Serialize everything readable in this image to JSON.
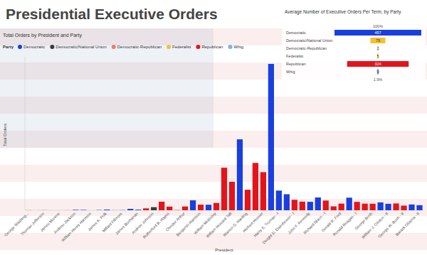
{
  "page": {
    "title": "Presidential Executive Orders"
  },
  "chart_data": [
    {
      "type": "bar",
      "title": "Total Orders by President and Party",
      "x_label": "President",
      "y_label": "Total Orders",
      "legend_title": "Party",
      "legend": "top-left",
      "stacked": true,
      "tick_labels": "x",
      "ylim": [
        0,
        3900
      ],
      "categories": [
        "George Washing...",
        null,
        "Thomas Jefferson",
        null,
        "James Monroe",
        null,
        "Andrew Jackson",
        null,
        "William Henry Harrison",
        null,
        "James K. Polk",
        null,
        "Millard Fillmore",
        null,
        "James Buchanan",
        null,
        "Andrew Johnson",
        null,
        "Rutherford B. Hayes",
        null,
        "Chester Arthur",
        null,
        "Benjamin Harrison",
        null,
        "William McKinley",
        null,
        "William Howard Taft",
        null,
        "Warren G. Harding",
        null,
        "Herbert Hoover",
        null,
        "Harry S. Truman - I",
        null,
        "Dwight D. Eisenhower - I",
        null,
        "John F. Kennedy",
        null,
        "Richard Nixon - I",
        null,
        "Gerald R. Ford",
        null,
        "Ronald Reagan - I",
        null,
        "George Bush",
        null,
        "William J. Clinton - II",
        null,
        "George W. Bush - II",
        null,
        "Barack Obama - II"
      ],
      "series": [
        {
          "name": "Democratic",
          "color": "#1a3fe0",
          "values": [
            null,
            null,
            null,
            null,
            null,
            null,
            12,
            10,
            null,
            null,
            18,
            null,
            null,
            35,
            16,
            null,
            null,
            null,
            null,
            null,
            null,
            253,
            null,
            140,
            null,
            null,
            null,
            1803,
            null,
            null,
            null,
            3721,
            500,
            407,
            null,
            null,
            214,
            325,
            null,
            null,
            null,
            320,
            null,
            null,
            null,
            200,
            164,
            null,
            null,
            147,
            129
          ]
        },
        {
          "name": "Democratic/National Union",
          "color": "#3b3b3b",
          "values": [
            null,
            null,
            null,
            null,
            null,
            null,
            null,
            null,
            null,
            null,
            null,
            null,
            null,
            null,
            null,
            null,
            79,
            null,
            null,
            null,
            null,
            null,
            null,
            null,
            null,
            null,
            null,
            null,
            null,
            null,
            null,
            null,
            null,
            null,
            null,
            null,
            null,
            null,
            null,
            null,
            null,
            null,
            null,
            null,
            null,
            null,
            null,
            null,
            null,
            null,
            null
          ]
        },
        {
          "name": "Democratic-Republican",
          "color": "#f07a72",
          "values": [
            null,
            null,
            4,
            1,
            1,
            3,
            null,
            null,
            null,
            null,
            null,
            null,
            null,
            null,
            null,
            null,
            null,
            null,
            null,
            null,
            null,
            null,
            null,
            null,
            null,
            null,
            null,
            null,
            null,
            null,
            null,
            null,
            null,
            null,
            null,
            null,
            null,
            null,
            null,
            null,
            null,
            null,
            null,
            null,
            null,
            null,
            null,
            null,
            null,
            null,
            null
          ]
        },
        {
          "name": "Federalist",
          "color": "#f2c230",
          "values": [
            8,
            1,
            null,
            null,
            null,
            null,
            null,
            null,
            null,
            null,
            null,
            null,
            null,
            null,
            null,
            null,
            null,
            null,
            null,
            null,
            null,
            null,
            null,
            null,
            null,
            null,
            null,
            null,
            null,
            null,
            null,
            null,
            null,
            null,
            null,
            null,
            null,
            null,
            null,
            null,
            null,
            null,
            null,
            null,
            null,
            null,
            null,
            null,
            null,
            null,
            null
          ]
        },
        {
          "name": "Republican",
          "color": "#e3141c",
          "values": [
            null,
            null,
            null,
            null,
            null,
            null,
            null,
            null,
            null,
            null,
            null,
            null,
            null,
            null,
            null,
            48,
            null,
            217,
            92,
            6,
            96,
            null,
            143,
            null,
            185,
            1081,
            724,
            null,
            522,
            1203,
            968,
            null,
            null,
            null,
            266,
            218,
            null,
            null,
            247,
            99,
            169,
            null,
            213,
            168,
            166,
            null,
            null,
            173,
            118,
            null,
            null
          ]
        },
        {
          "name": "Whig",
          "color": "#7ab3ea",
          "values": [
            null,
            null,
            null,
            null,
            null,
            null,
            null,
            null,
            0,
            17,
            null,
            5,
            12,
            null,
            null,
            null,
            null,
            null,
            null,
            null,
            null,
            null,
            null,
            null,
            null,
            null,
            null,
            null,
            null,
            null,
            null,
            null,
            null,
            null,
            null,
            null,
            null,
            null,
            null,
            null,
            null,
            null,
            null,
            null,
            null,
            null,
            null,
            null,
            null,
            null,
            null
          ]
        }
      ]
    },
    {
      "type": "funnel",
      "title": "Average Number of Executive Orders Per Term, by Party",
      "categories": [
        "Democratic",
        "Democratic/National Union",
        "Democratic-Republican",
        "Federalist",
        "Republican",
        "Whig"
      ],
      "values": [
        457,
        79,
        2,
        5,
        324,
        8.8
      ],
      "value_labels": [
        "457",
        "79",
        "2",
        "5",
        "324",
        "9"
      ],
      "colors": [
        "#1a3fe0",
        "#f2c230",
        "#f07a72",
        "#f2c230",
        "#e3141c",
        "#7ab3ea"
      ],
      "data_labels": true,
      "annotations": [
        {
          "text": "100%"
        },
        {
          "text": "1.9%"
        }
      ]
    }
  ]
}
